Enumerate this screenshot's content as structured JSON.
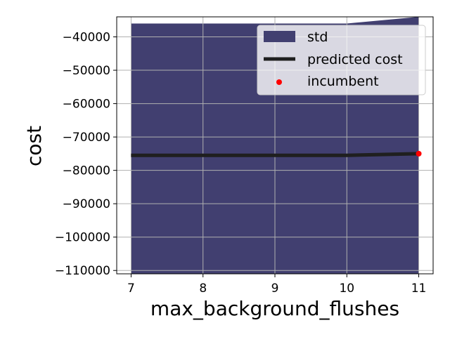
{
  "chart_data": {
    "type": "line",
    "xlabel": "max_background_flushes",
    "ylabel": "cost",
    "xlim": [
      6.8,
      11.2
    ],
    "ylim": [
      -111000,
      -34000
    ],
    "x_ticks": [
      7,
      8,
      9,
      10,
      11
    ],
    "y_ticks": [
      -110000,
      -100000,
      -90000,
      -80000,
      -70000,
      -60000,
      -50000,
      -40000
    ],
    "x_tick_labels": [
      "7",
      "8",
      "9",
      "10",
      "11"
    ],
    "y_tick_labels": [
      "−40000",
      "−50000",
      "−60000",
      "−70000",
      "−80000",
      "−90000",
      "−100000",
      "−110000"
    ],
    "grid": true,
    "legend_position": "top-right",
    "legend": [
      {
        "label": "std",
        "kind": "patch",
        "color": "#413f70"
      },
      {
        "label": "predicted cost",
        "kind": "line",
        "color": "#1f1f1f"
      },
      {
        "label": "incumbent",
        "kind": "point",
        "color": "#ff0000"
      }
    ],
    "series": [
      {
        "name": "std",
        "kind": "band",
        "color": "#413f70",
        "x": [
          7,
          8,
          9,
          10,
          11
        ],
        "upper": [
          -36000,
          -36000,
          -36000,
          -36000,
          -34000
        ],
        "lower": [
          -111000,
          -111000,
          -111000,
          -111000,
          -111000
        ]
      },
      {
        "name": "predicted cost",
        "kind": "line",
        "color": "#1f1f1f",
        "x": [
          7,
          8,
          9,
          10,
          11
        ],
        "y": [
          -75500,
          -75500,
          -75500,
          -75500,
          -75000
        ]
      },
      {
        "name": "incumbent",
        "kind": "scatter",
        "color": "#ff0000",
        "x": [
          11
        ],
        "y": [
          -75000
        ]
      }
    ]
  }
}
